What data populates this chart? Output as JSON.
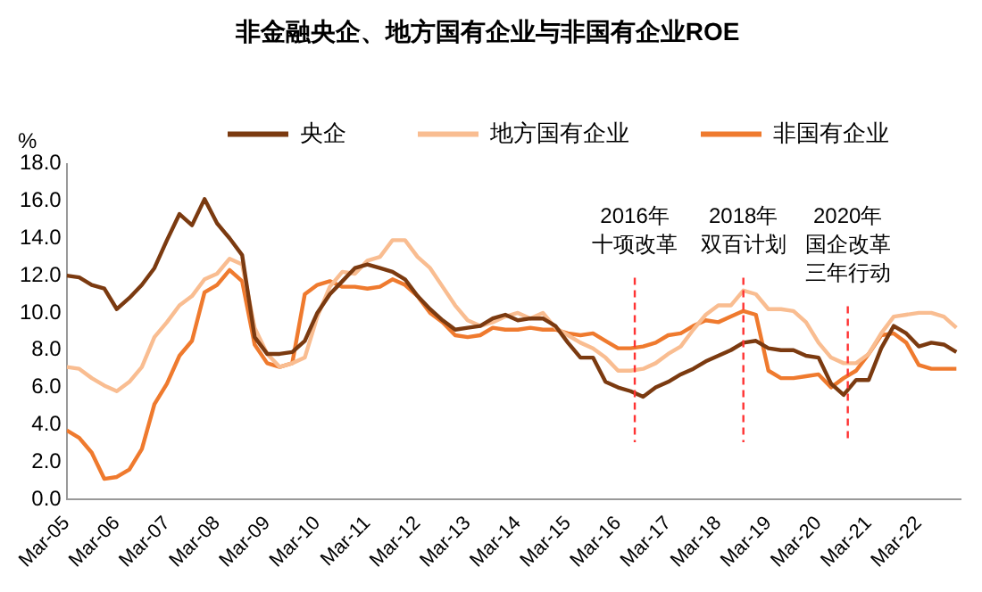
{
  "chart_data": {
    "type": "line",
    "title": "非金融央企、地方国有企业与非国有企业ROE",
    "ylabel": "%",
    "x": [
      "2005-03",
      "2005-06",
      "2005-09",
      "2005-12",
      "2006-03",
      "2006-06",
      "2006-09",
      "2006-12",
      "2007-03",
      "2007-06",
      "2007-09",
      "2007-12",
      "2008-03",
      "2008-06",
      "2008-09",
      "2008-12",
      "2009-03",
      "2009-06",
      "2009-09",
      "2009-12",
      "2010-03",
      "2010-06",
      "2010-09",
      "2010-12",
      "2011-03",
      "2011-06",
      "2011-09",
      "2011-12",
      "2012-03",
      "2012-06",
      "2012-09",
      "2012-12",
      "2013-03",
      "2013-06",
      "2013-09",
      "2013-12",
      "2014-03",
      "2014-06",
      "2014-09",
      "2014-12",
      "2015-03",
      "2015-06",
      "2015-09",
      "2015-12",
      "2016-03",
      "2016-06",
      "2016-09",
      "2016-12",
      "2017-03",
      "2017-06",
      "2017-09",
      "2017-12",
      "2018-03",
      "2018-06",
      "2018-09",
      "2018-12",
      "2019-03",
      "2019-06",
      "2019-09",
      "2019-12",
      "2020-03",
      "2020-06",
      "2020-09",
      "2020-12",
      "2021-03",
      "2021-06",
      "2021-09",
      "2021-12",
      "2022-03",
      "2022-06",
      "2022-09",
      "2022-12"
    ],
    "series": [
      {
        "name": "央企",
        "color": "#7b3a10",
        "values": [
          12.0,
          11.9,
          11.5,
          11.3,
          10.2,
          10.8,
          11.5,
          12.4,
          13.9,
          15.3,
          14.7,
          16.1,
          14.8,
          14.0,
          13.1,
          8.7,
          7.8,
          7.8,
          7.9,
          8.5,
          10.0,
          11.0,
          11.7,
          12.4,
          12.6,
          12.4,
          12.2,
          11.8,
          10.9,
          10.2,
          9.6,
          9.1,
          9.2,
          9.3,
          9.7,
          9.9,
          9.6,
          9.7,
          9.7,
          9.3,
          8.4,
          7.6,
          7.6,
          6.3,
          6.0,
          5.8,
          5.5,
          6.0,
          6.3,
          6.7,
          7.0,
          7.4,
          7.7,
          8.0,
          8.4,
          8.5,
          8.1,
          8.0,
          8.0,
          7.7,
          7.6,
          6.2,
          5.6,
          6.4,
          6.4,
          8.1,
          9.3,
          8.9,
          8.2,
          8.4,
          8.3,
          7.9
        ]
      },
      {
        "name": "地方国有企业",
        "color": "#f9bd91",
        "values": [
          7.1,
          7.0,
          6.5,
          6.1,
          5.8,
          6.3,
          7.1,
          8.7,
          9.5,
          10.4,
          10.9,
          11.8,
          12.1,
          12.9,
          12.6,
          9.2,
          7.8,
          7.1,
          7.3,
          7.6,
          9.8,
          11.4,
          12.2,
          12.1,
          12.8,
          13.0,
          13.9,
          13.9,
          13.0,
          12.4,
          11.4,
          10.4,
          9.6,
          9.3,
          9.5,
          9.8,
          10.0,
          9.7,
          10.0,
          9.2,
          8.8,
          8.4,
          8.1,
          7.6,
          6.9,
          6.9,
          7.0,
          7.3,
          7.8,
          8.2,
          9.1,
          9.9,
          10.4,
          10.4,
          11.2,
          11.0,
          10.2,
          10.2,
          10.1,
          9.5,
          8.4,
          7.6,
          7.3,
          7.3,
          7.8,
          8.9,
          9.8,
          9.9,
          10.0,
          10.0,
          9.8,
          9.2
        ]
      },
      {
        "name": "非国有企业",
        "color": "#ef7a2e",
        "values": [
          3.7,
          3.3,
          2.5,
          1.1,
          1.2,
          1.6,
          2.7,
          5.1,
          6.2,
          7.7,
          8.5,
          11.1,
          11.5,
          12.3,
          11.7,
          8.3,
          7.3,
          7.1,
          7.3,
          11.0,
          11.5,
          11.7,
          11.4,
          11.4,
          11.3,
          11.4,
          11.8,
          11.5,
          10.9,
          10.0,
          9.5,
          8.8,
          8.7,
          8.8,
          9.2,
          9.1,
          9.1,
          9.2,
          9.1,
          9.1,
          8.9,
          8.8,
          8.9,
          8.5,
          8.1,
          8.1,
          8.2,
          8.4,
          8.8,
          8.9,
          9.3,
          9.6,
          9.5,
          9.8,
          10.1,
          9.9,
          6.9,
          6.5,
          6.5,
          6.6,
          6.7,
          6.0,
          6.5,
          6.9,
          7.8,
          8.8,
          8.9,
          8.4,
          7.2,
          7.0,
          7.0,
          7.0
        ]
      }
    ],
    "xlim": [
      "2005-03",
      "2023-01"
    ],
    "xticks": [
      {
        "value": "2005-03",
        "label": "Mar-05"
      },
      {
        "value": "2006-03",
        "label": "Mar-06"
      },
      {
        "value": "2007-03",
        "label": "Mar-07"
      },
      {
        "value": "2008-03",
        "label": "Mar-08"
      },
      {
        "value": "2009-03",
        "label": "Mar-09"
      },
      {
        "value": "2010-03",
        "label": "Mar-10"
      },
      {
        "value": "2011-03",
        "label": "Mar-11"
      },
      {
        "value": "2012-03",
        "label": "Mar-12"
      },
      {
        "value": "2013-03",
        "label": "Mar-13"
      },
      {
        "value": "2014-03",
        "label": "Mar-14"
      },
      {
        "value": "2015-03",
        "label": "Mar-15"
      },
      {
        "value": "2016-03",
        "label": "Mar-16"
      },
      {
        "value": "2017-03",
        "label": "Mar-17"
      },
      {
        "value": "2018-03",
        "label": "Mar-18"
      },
      {
        "value": "2019-03",
        "label": "Mar-19"
      },
      {
        "value": "2020-03",
        "label": "Mar-20"
      },
      {
        "value": "2021-03",
        "label": "Mar-21"
      },
      {
        "value": "2022-03",
        "label": "Mar-22"
      }
    ],
    "ylim": [
      0,
      18
    ],
    "yticks": [
      {
        "value": 0,
        "label": "0.0"
      },
      {
        "value": 2,
        "label": "2.0"
      },
      {
        "value": 4,
        "label": "4.0"
      },
      {
        "value": 6,
        "label": "6.0"
      },
      {
        "value": 8,
        "label": "8.0"
      },
      {
        "value": 10,
        "label": "10.0"
      },
      {
        "value": 12,
        "label": "12.0"
      },
      {
        "value": 14,
        "label": "14.0"
      },
      {
        "value": 16,
        "label": "16.0"
      },
      {
        "value": 18,
        "label": "18.0"
      }
    ],
    "ref_lines": [
      {
        "axis": "x",
        "value": "2016-07",
        "label": "2016年十项改革",
        "color": "#ff3333",
        "line_style": "dashed"
      },
      {
        "axis": "x",
        "value": "2018-09",
        "label": "2018年双百计划",
        "color": "#ff3333",
        "line_style": "dashed"
      },
      {
        "axis": "x",
        "value": "2020-10",
        "label": "2020年国企改革三年行动",
        "color": "#ff3333",
        "line_style": "dashed"
      }
    ],
    "grid": false,
    "legend": "top",
    "marker": "none",
    "line_style": "solid"
  }
}
